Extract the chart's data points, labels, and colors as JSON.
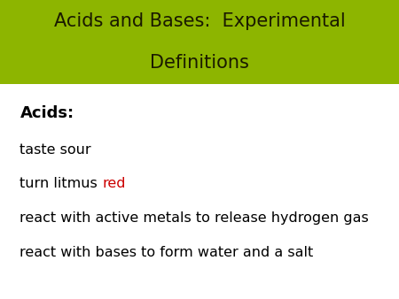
{
  "title_line1": "Acids and Bases:  Experimental",
  "title_line2": "Definitions",
  "title_bg_color": "#8db500",
  "title_text_color": "#1a1a00",
  "bg_color": "#ffffff",
  "header_text": "Acids:",
  "header_color": "#000000",
  "bullet_lines": [
    {
      "parts": [
        {
          "text": "taste sour",
          "color": "#000000"
        }
      ]
    },
    {
      "parts": [
        {
          "text": "turn litmus ",
          "color": "#000000"
        },
        {
          "text": "red",
          "color": "#cc0000"
        }
      ]
    },
    {
      "parts": [
        {
          "text": "react with active metals to release hydrogen gas",
          "color": "#000000"
        }
      ]
    },
    {
      "parts": [
        {
          "text": "react with bases to form water and a salt",
          "color": "#000000"
        }
      ]
    }
  ],
  "title_font_size": 15,
  "header_font_size": 13,
  "bullet_font_size": 11.5,
  "fig_width": 4.5,
  "fig_height": 3.38,
  "dpi": 100
}
